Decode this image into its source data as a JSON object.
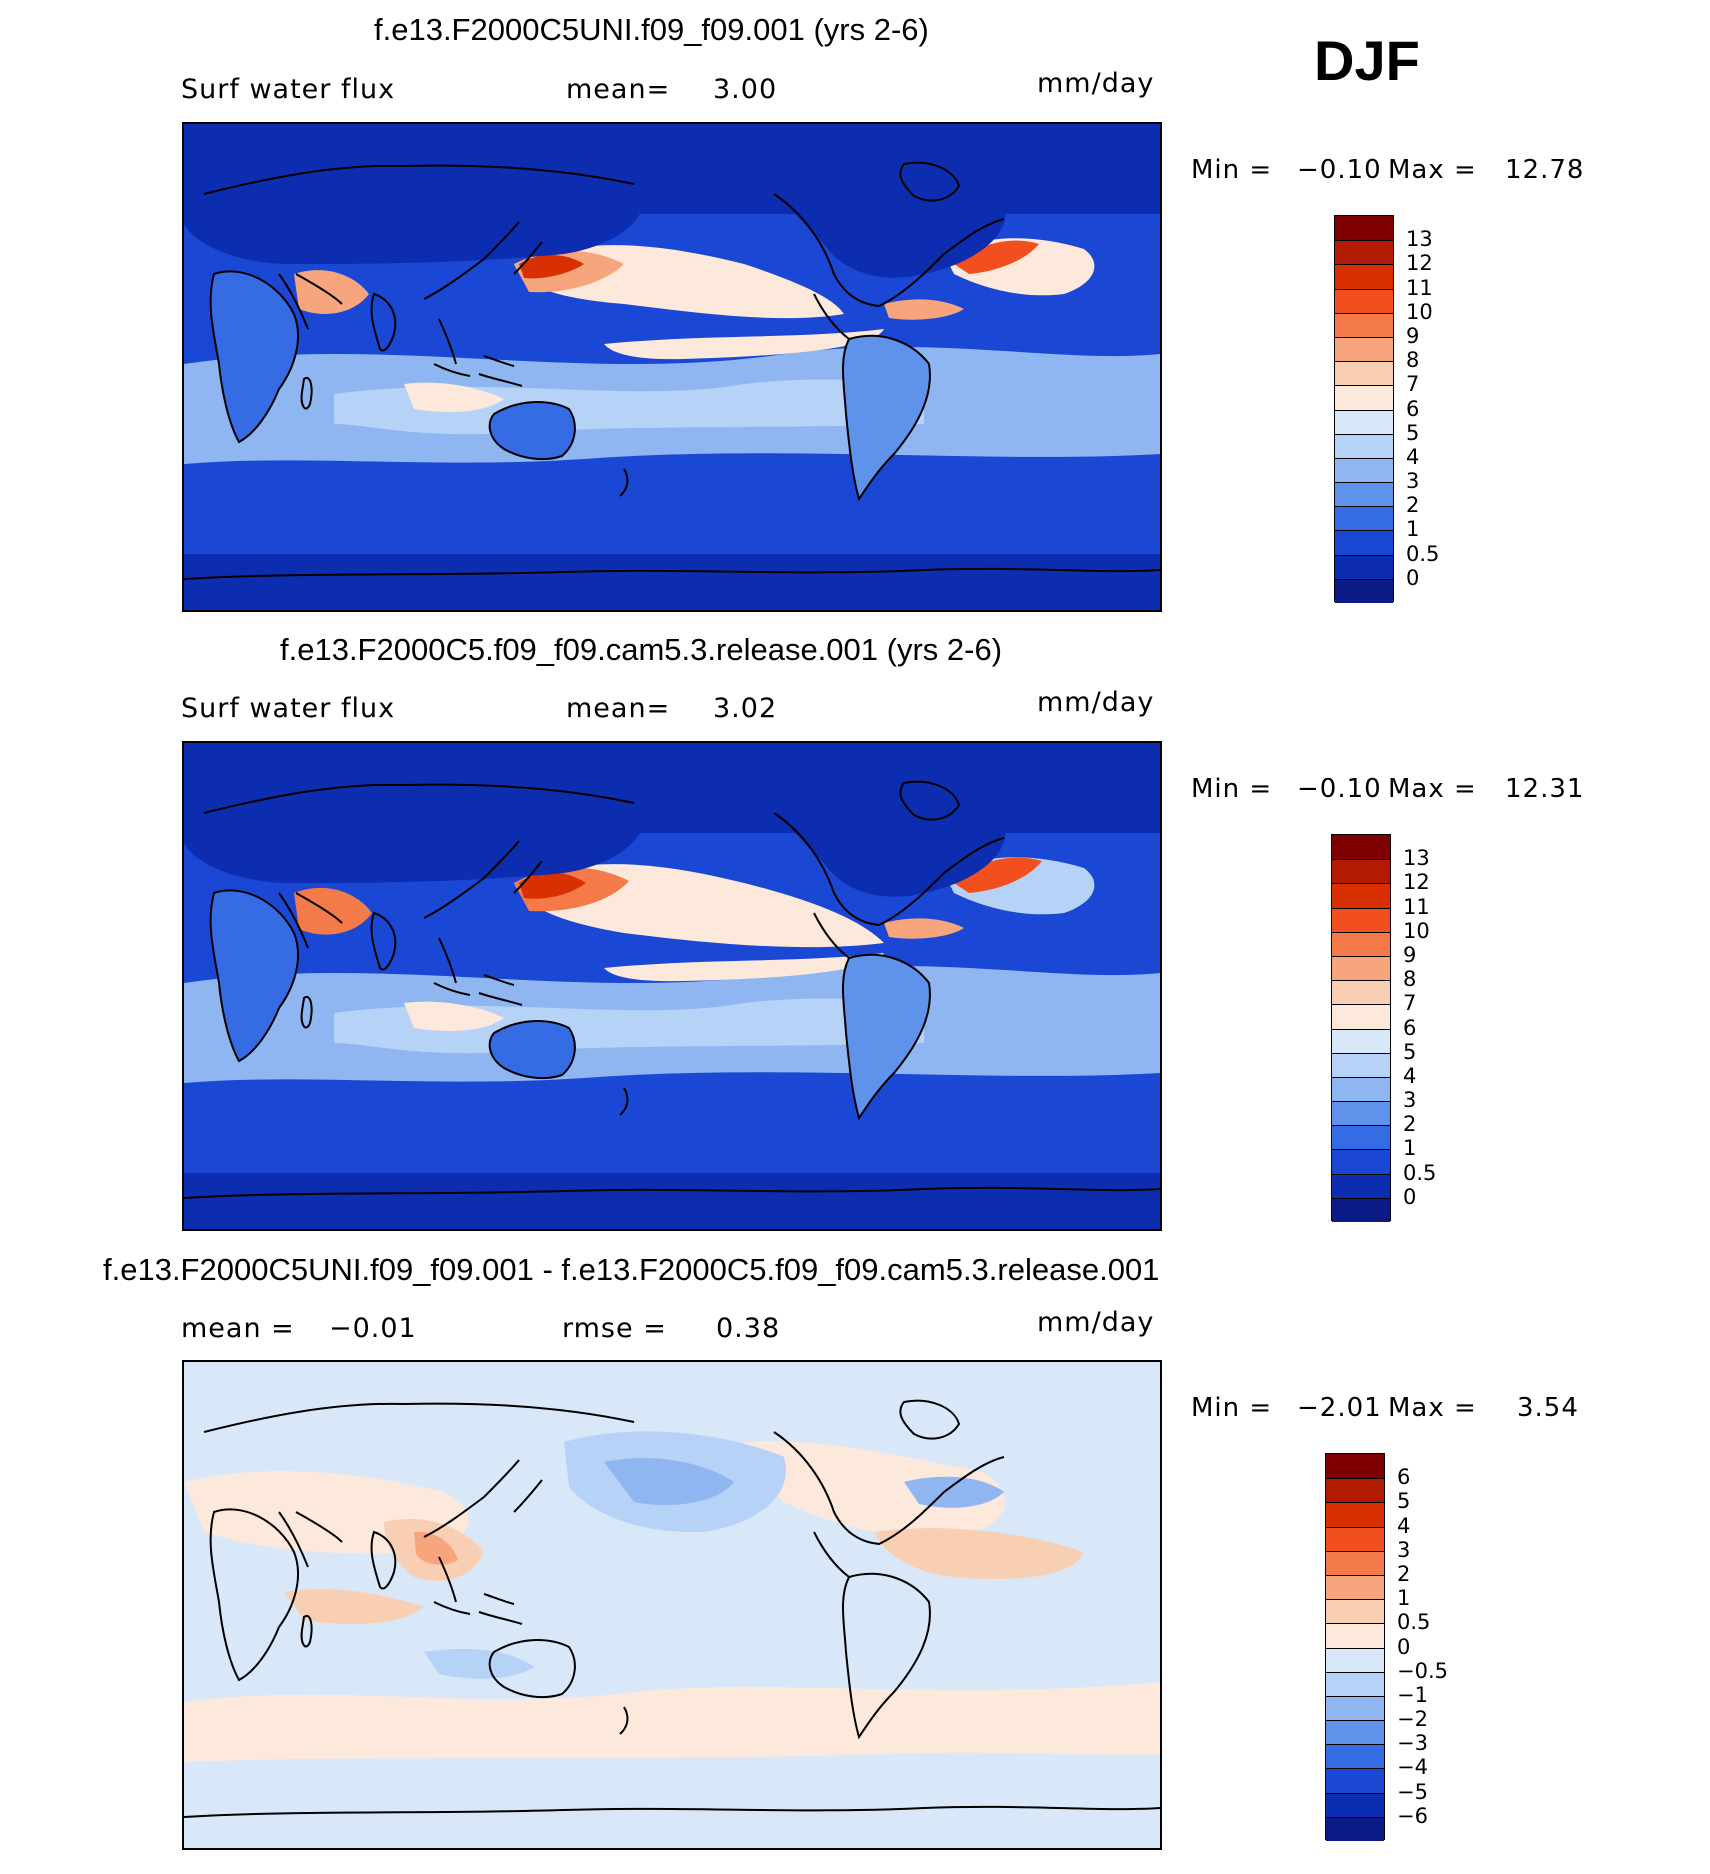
{
  "season": "DJF",
  "panels": [
    {
      "id": "top",
      "title": "f.e13.F2000C5UNI.f09_f09.001 (yrs 2-6)",
      "left_label": "Surf water flux",
      "center_label": "mean=",
      "center_value": "3.00",
      "units": "mm/day",
      "min_label": "Min =",
      "min_value": "−0.10",
      "max_label": "Max =",
      "max_value": "12.78",
      "colorbar": {
        "labels": [
          "13",
          "12",
          "11",
          "10",
          "9",
          "8",
          "7",
          "6",
          "5",
          "4",
          "3",
          "2",
          "1",
          "0.5",
          "0"
        ],
        "colors": [
          "#7f0000",
          "#b31b00",
          "#d83000",
          "#f24f1e",
          "#f57a4a",
          "#f7a57d",
          "#f9cfb3",
          "#fde9dc",
          "#d8e8f9",
          "#b6d2f6",
          "#8fb6f0",
          "#5f92eb",
          "#356be3",
          "#1a48d4",
          "#0d2db0",
          "#0a1b85"
        ]
      }
    },
    {
      "id": "middle",
      "title": "f.e13.F2000C5.f09_f09.cam5.3.release.001 (yrs 2-6)",
      "left_label": "Surf water flux",
      "center_label": "mean=",
      "center_value": "3.02",
      "units": "mm/day",
      "min_label": "Min =",
      "min_value": "−0.10",
      "max_label": "Max =",
      "max_value": "12.31",
      "colorbar": {
        "labels": [
          "13",
          "12",
          "11",
          "10",
          "9",
          "8",
          "7",
          "6",
          "5",
          "4",
          "3",
          "2",
          "1",
          "0.5",
          "0"
        ],
        "colors": [
          "#7f0000",
          "#b31b00",
          "#d83000",
          "#f24f1e",
          "#f57a4a",
          "#f7a57d",
          "#f9cfb3",
          "#fde9dc",
          "#d8e8f9",
          "#b6d2f6",
          "#8fb6f0",
          "#5f92eb",
          "#356be3",
          "#1a48d4",
          "#0d2db0",
          "#0a1b85"
        ]
      }
    },
    {
      "id": "bottom",
      "title": "f.e13.F2000C5UNI.f09_f09.001 - f.e13.F2000C5.f09_f09.cam5.3.release.001",
      "left_label": "mean =",
      "left_value": "−0.01",
      "center_label": "rmse =",
      "center_value": "0.38",
      "units": "mm/day",
      "min_label": "Min =",
      "min_value": "−2.01",
      "max_label": "Max =",
      "max_value": "3.54",
      "colorbar": {
        "labels": [
          "6",
          "5",
          "4",
          "3",
          "2",
          "1",
          "0.5",
          "0",
          "−0.5",
          "−1",
          "−2",
          "−3",
          "−4",
          "−5",
          "−6"
        ],
        "colors": [
          "#7f0000",
          "#b31b00",
          "#d83000",
          "#f24f1e",
          "#f57a4a",
          "#f7a57d",
          "#f9cfb3",
          "#fde9dc",
          "#d8e8f9",
          "#b6d2f6",
          "#8fb6f0",
          "#5f92eb",
          "#356be3",
          "#1a48d4",
          "#0d2db0",
          "#0a1b85"
        ]
      }
    }
  ],
  "map_colors": {
    "ocean_deep": "#1a48d4",
    "ocean_mid": "#5f92eb",
    "ocean_light": "#b6d2f6",
    "land": "#0d2db0",
    "polar": "#0a1b85",
    "wet": "#f7a57d",
    "very_wet": "#d83000",
    "peach": "#fde9dc",
    "diff_bg": "#d8e8f9",
    "diff_pos": "#f9cfb3",
    "diff_neg": "#b6d2f6",
    "coast": "#000000"
  }
}
